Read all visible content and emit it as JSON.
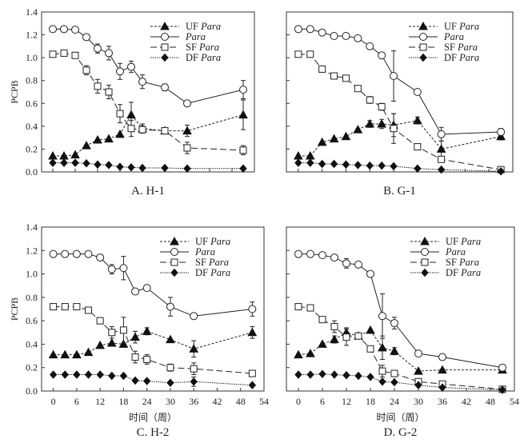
{
  "chart_data": [
    {
      "type": "line",
      "panel_label": "A. H-1",
      "ylabel": "PCPB",
      "xlabel": "",
      "xlim": [
        -3,
        54
      ],
      "ylim": [
        0,
        1.4
      ],
      "yticks": [
        "0.0",
        "0.2",
        "0.4",
        "0.6",
        "0.8",
        "1.0",
        "1.2",
        "1.4"
      ],
      "xticks": [],
      "legend_position": "top-right",
      "series": [
        {
          "name": "UF Para",
          "marker": "triangle-filled",
          "line": "short-dash",
          "x": [
            0,
            3,
            6,
            9,
            12,
            15,
            18,
            21,
            24,
            30,
            36,
            51
          ],
          "values": [
            0.14,
            0.14,
            0.15,
            0.23,
            0.28,
            0.29,
            0.33,
            0.5,
            0.38,
            0.36,
            0.36,
            0.5
          ],
          "errors": [
            0,
            0,
            0,
            0,
            0,
            0,
            0,
            0.11,
            0.04,
            0,
            0.05,
            0.13
          ]
        },
        {
          "name": "Para",
          "marker": "circle-open",
          "line": "solid",
          "x": [
            0,
            3,
            6,
            9,
            12,
            15,
            18,
            21,
            24,
            30,
            36,
            51
          ],
          "values": [
            1.25,
            1.25,
            1.245,
            1.18,
            1.08,
            1.04,
            0.88,
            0.92,
            0.79,
            0.74,
            0.6,
            0.72
          ],
          "errors": [
            0,
            0,
            0,
            0,
            0.04,
            0.06,
            0.07,
            0.05,
            0.06,
            0.03,
            0,
            0.08
          ]
        },
        {
          "name": "SF Para",
          "marker": "square-open",
          "line": "long-dash",
          "x": [
            0,
            3,
            6,
            9,
            12,
            15,
            18,
            21,
            24,
            30,
            36,
            51
          ],
          "values": [
            1.03,
            1.04,
            1.02,
            0.89,
            0.75,
            0.7,
            0.51,
            0.38,
            0.37,
            0.36,
            0.21,
            0.19
          ],
          "errors": [
            0,
            0,
            0,
            0.04,
            0.06,
            0.06,
            0.08,
            0.07,
            0.03,
            0,
            0.05,
            0.04
          ]
        },
        {
          "name": "DF Para",
          "marker": "diamond-filled",
          "line": "dotted",
          "x": [
            0,
            3,
            6,
            9,
            12,
            15,
            18,
            21,
            24,
            30,
            36,
            51
          ],
          "values": [
            0.08,
            0.08,
            0.08,
            0.075,
            0.065,
            0.06,
            0.045,
            0.04,
            0.035,
            0.035,
            0.03,
            0.03
          ],
          "errors": [
            0,
            0,
            0,
            0,
            0,
            0,
            0,
            0,
            0,
            0,
            0,
            0
          ]
        }
      ]
    },
    {
      "type": "line",
      "panel_label": "B. G-1",
      "ylabel": "",
      "xlabel": "",
      "xlim": [
        -3,
        54
      ],
      "ylim": [
        0,
        1.4
      ],
      "yticks": [],
      "xticks": [],
      "legend_position": "top-right",
      "series": [
        {
          "name": "UF Para",
          "marker": "triangle-filled",
          "line": "short-dash",
          "x": [
            0,
            3,
            6,
            9,
            12,
            15,
            18,
            21,
            24,
            30,
            36,
            51
          ],
          "values": [
            0.14,
            0.14,
            0.26,
            0.29,
            0.31,
            0.37,
            0.42,
            0.42,
            0.41,
            0.45,
            0.2,
            0.31
          ],
          "errors": [
            0,
            0,
            0,
            0,
            0,
            0,
            0.03,
            0.04,
            0.1,
            0.03,
            0.07,
            0.03
          ]
        },
        {
          "name": "Para",
          "marker": "circle-open",
          "line": "solid",
          "x": [
            0,
            3,
            6,
            9,
            12,
            15,
            18,
            21,
            24,
            30,
            36,
            51
          ],
          "values": [
            1.25,
            1.25,
            1.22,
            1.19,
            1.19,
            1.17,
            1.1,
            1.02,
            0.84,
            0.7,
            0.33,
            0.35
          ],
          "errors": [
            0,
            0,
            0,
            0,
            0,
            0,
            0,
            0,
            0.22,
            0,
            0.06,
            0.03
          ]
        },
        {
          "name": "SF Para",
          "marker": "square-open",
          "line": "long-dash",
          "x": [
            0,
            3,
            6,
            9,
            12,
            15,
            18,
            21,
            24,
            30,
            36,
            51
          ],
          "values": [
            1.03,
            1.03,
            0.9,
            0.84,
            0.82,
            0.73,
            0.63,
            0.57,
            0.38,
            0.22,
            0.11,
            0.02
          ],
          "errors": [
            0,
            0,
            0,
            0,
            0,
            0,
            0.03,
            0.03,
            0.13,
            0,
            0,
            0
          ]
        },
        {
          "name": "DF Para",
          "marker": "diamond-filled",
          "line": "dotted",
          "x": [
            0,
            3,
            6,
            9,
            12,
            15,
            18,
            21,
            24,
            30,
            36,
            51
          ],
          "values": [
            0.08,
            0.08,
            0.07,
            0.07,
            0.065,
            0.06,
            0.055,
            0.055,
            0.05,
            0.03,
            0.02,
            0.005
          ],
          "errors": [
            0,
            0,
            0,
            0,
            0,
            0,
            0,
            0,
            0,
            0,
            0,
            0
          ]
        }
      ]
    },
    {
      "type": "line",
      "panel_label": "C. H-2",
      "ylabel": "PCPB",
      "xlabel": "时间（周）",
      "xlim": [
        -3,
        54
      ],
      "ylim": [
        0,
        1.4
      ],
      "yticks": [
        "0.0",
        "0.2",
        "0.4",
        "0.6",
        "0.8",
        "1.0",
        "1.2",
        "1.4"
      ],
      "xticks": [
        "0",
        "6",
        "12",
        "18",
        "24",
        "30",
        "36",
        "42",
        "48",
        "54"
      ],
      "legend_position": "top-right",
      "series": [
        {
          "name": "UF Para",
          "marker": "triangle-filled",
          "line": "short-dash",
          "x": [
            0,
            3,
            6,
            9,
            12,
            15,
            18,
            21,
            24,
            30,
            36,
            51
          ],
          "values": [
            0.31,
            0.31,
            0.31,
            0.33,
            0.39,
            0.41,
            0.4,
            0.46,
            0.51,
            0.44,
            0.36,
            0.5
          ],
          "errors": [
            0,
            0,
            0,
            0,
            0,
            0,
            0,
            0.05,
            0.03,
            0,
            0.07,
            0.05
          ]
        },
        {
          "name": "Para",
          "marker": "circle-open",
          "line": "solid",
          "x": [
            0,
            3,
            6,
            9,
            12,
            15,
            18,
            21,
            24,
            30,
            36,
            51
          ],
          "values": [
            1.17,
            1.17,
            1.17,
            1.17,
            1.14,
            1.04,
            1.05,
            0.85,
            0.88,
            0.72,
            0.64,
            0.7
          ],
          "errors": [
            0,
            0,
            0,
            0,
            0,
            0.04,
            0.1,
            0,
            0.02,
            0.08,
            0.02,
            0.06
          ]
        },
        {
          "name": "SF Para",
          "marker": "square-open",
          "line": "long-dash",
          "x": [
            0,
            3,
            6,
            9,
            12,
            15,
            18,
            21,
            24,
            30,
            36,
            51
          ],
          "values": [
            0.72,
            0.72,
            0.72,
            0.69,
            0.6,
            0.5,
            0.52,
            0.29,
            0.27,
            0.2,
            0.19,
            0.15
          ],
          "errors": [
            0,
            0,
            0,
            0,
            0,
            0.05,
            0.11,
            0.05,
            0.04,
            0.03,
            0.05,
            0
          ]
        },
        {
          "name": "DF Para",
          "marker": "diamond-filled",
          "line": "dotted",
          "x": [
            0,
            3,
            6,
            9,
            12,
            15,
            18,
            21,
            24,
            30,
            36,
            51
          ],
          "values": [
            0.14,
            0.14,
            0.14,
            0.14,
            0.14,
            0.13,
            0.13,
            0.09,
            0.085,
            0.07,
            0.08,
            0.05
          ],
          "errors": [
            0,
            0,
            0,
            0,
            0,
            0,
            0,
            0,
            0,
            0,
            0.04,
            0
          ]
        }
      ]
    },
    {
      "type": "line",
      "panel_label": "D. G-2",
      "ylabel": "",
      "xlabel": "时间（周）",
      "xlim": [
        -3,
        54
      ],
      "ylim": [
        0,
        1.4
      ],
      "yticks": [],
      "xticks": [
        "0",
        "6",
        "12",
        "18",
        "24",
        "30",
        "36",
        "42",
        "48",
        "54"
      ],
      "legend_position": "top-right",
      "series": [
        {
          "name": "UF Para",
          "marker": "triangle-filled",
          "line": "short-dash",
          "x": [
            0,
            3,
            6,
            9,
            12,
            15,
            18,
            21,
            24,
            30,
            36,
            51
          ],
          "values": [
            0.31,
            0.32,
            0.4,
            0.44,
            0.5,
            0.47,
            0.52,
            0.37,
            0.34,
            0.17,
            0.18,
            0.18
          ],
          "errors": [
            0,
            0,
            0,
            0.03,
            0.04,
            0,
            0,
            0.1,
            0.03,
            0,
            0,
            0
          ]
        },
        {
          "name": "Para",
          "marker": "circle-open",
          "line": "solid",
          "x": [
            0,
            3,
            6,
            9,
            12,
            15,
            18,
            21,
            24,
            30,
            36,
            51
          ],
          "values": [
            1.17,
            1.17,
            1.16,
            1.14,
            1.09,
            1.08,
            1.0,
            0.64,
            0.58,
            0.32,
            0.29,
            0.2
          ],
          "errors": [
            0,
            0,
            0,
            0,
            0.04,
            0,
            0,
            0.19,
            0.05,
            0,
            0,
            0
          ]
        },
        {
          "name": "SF Para",
          "marker": "square-open",
          "line": "long-dash",
          "x": [
            0,
            3,
            6,
            9,
            12,
            15,
            18,
            21,
            24,
            30,
            36,
            51
          ],
          "values": [
            0.72,
            0.71,
            0.61,
            0.55,
            0.46,
            0.47,
            0.36,
            0.17,
            0.15,
            0.08,
            0.06,
            0.015
          ],
          "errors": [
            0,
            0,
            0,
            0.05,
            0.07,
            0,
            0,
            0.05,
            0,
            0,
            0,
            0
          ]
        },
        {
          "name": "DF Para",
          "marker": "diamond-filled",
          "line": "dotted",
          "x": [
            0,
            3,
            6,
            9,
            12,
            15,
            18,
            21,
            24,
            30,
            36,
            51
          ],
          "values": [
            0.14,
            0.14,
            0.145,
            0.14,
            0.135,
            0.13,
            0.12,
            0.08,
            0.075,
            0.05,
            0.03,
            0.01
          ],
          "errors": [
            0,
            0,
            0,
            0,
            0,
            0,
            0,
            0,
            0,
            0,
            0,
            0
          ]
        }
      ]
    }
  ],
  "legend": {
    "entries": [
      {
        "prefix": "UF ",
        "italic": "Para"
      },
      {
        "prefix": "",
        "italic": "Para"
      },
      {
        "prefix": "SF ",
        "italic": "Para"
      },
      {
        "prefix": "DF ",
        "italic": "Para"
      }
    ]
  }
}
